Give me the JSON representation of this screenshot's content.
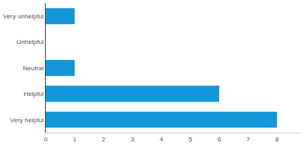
{
  "chart_data": {
    "type": "bar",
    "orientation": "horizontal",
    "categories": [
      "Very unhelpful",
      "Unhelpful",
      "Neutral",
      "Helpful",
      "Very helpful"
    ],
    "values": [
      1,
      0,
      1,
      6,
      8
    ],
    "color": "#1296dc",
    "xlim": [
      0,
      8.8
    ],
    "xticks": [
      0,
      1,
      2,
      3,
      4,
      5,
      6,
      7,
      8
    ],
    "grid": false
  }
}
